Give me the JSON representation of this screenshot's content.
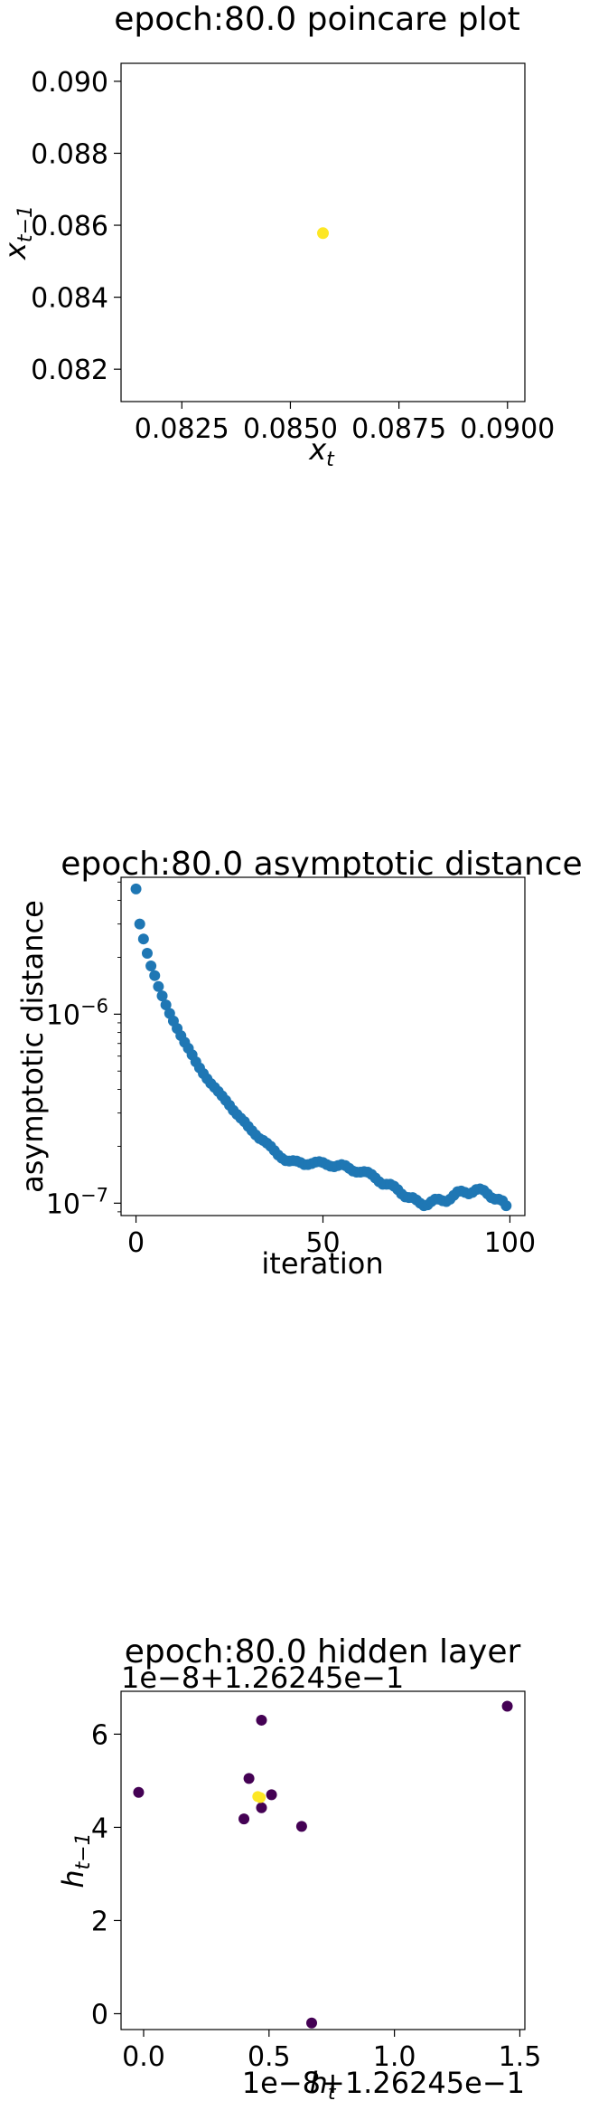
{
  "chart_data": [
    {
      "type": "scatter",
      "title": "epoch:80.0 poincare plot",
      "xlabel": "x",
      "xlabel_sub": "t",
      "ylabel": "x",
      "ylabel_sub": "t−1",
      "xlim": [
        0.0811,
        0.0904
      ],
      "ylim": [
        0.0811,
        0.0905
      ],
      "xticks": [
        0.0825,
        0.085,
        0.0875,
        0.09
      ],
      "xtick_labels": [
        "0.0825",
        "0.0850",
        "0.0875",
        "0.0900"
      ],
      "yticks": [
        0.082,
        0.084,
        0.086,
        0.088,
        0.09
      ],
      "ytick_labels": [
        "0.082",
        "0.084",
        "0.086",
        "0.088",
        "0.090"
      ],
      "point_color": "#fde725",
      "points": [
        {
          "x": 0.08575,
          "y": 0.08578
        }
      ]
    },
    {
      "type": "scatter",
      "scale": "log",
      "title": "epoch:80.0 asymptotic distance",
      "xlabel": "iteration",
      "ylabel": "asymptotic distance",
      "xlim": [
        -4,
        104
      ],
      "ylim": [
        8.6e-08,
        5.3e-06
      ],
      "xticks": [
        0,
        50,
        100
      ],
      "xtick_labels": [
        "0",
        "50",
        "100"
      ],
      "ytick_base": "10",
      "yticks": [
        1e-07,
        1e-06
      ],
      "ytick_exponents": [
        "−7",
        "−6"
      ],
      "point_color": "#1f77b4",
      "x": [
        0,
        1,
        2,
        3,
        4,
        5,
        6,
        7,
        8,
        9,
        10,
        11,
        12,
        13,
        14,
        15,
        16,
        17,
        18,
        19,
        20,
        21,
        22,
        23,
        24,
        25,
        26,
        27,
        28,
        29,
        30,
        31,
        32,
        33,
        34,
        35,
        36,
        37,
        38,
        39,
        40,
        41,
        42,
        43,
        44,
        45,
        46,
        47,
        48,
        49,
        50,
        51,
        52,
        53,
        54,
        55,
        56,
        57,
        58,
        59,
        60,
        61,
        62,
        63,
        64,
        65,
        66,
        67,
        68,
        69,
        70,
        71,
        72,
        73,
        74,
        75,
        76,
        77,
        78,
        79,
        80,
        81,
        82,
        83,
        84,
        85,
        86,
        87,
        88,
        89,
        90,
        91,
        92,
        93,
        94,
        95,
        96,
        97,
        98,
        99
      ],
      "y": [
        4.6e-06,
        3e-06,
        2.5e-06,
        2.1e-06,
        1.8e-06,
        1.6e-06,
        1.4e-06,
        1.25e-06,
        1.12e-06,
        1.01e-06,
        9.2e-07,
        8.4e-07,
        7.7e-07,
        7.1e-07,
        6.6e-07,
        6.1e-07,
        5.6e-07,
        5.2e-07,
        4.85e-07,
        4.55e-07,
        4.3e-07,
        4.1e-07,
        3.9e-07,
        3.7e-07,
        3.5e-07,
        3.3e-07,
        3.1e-07,
        2.95e-07,
        2.82e-07,
        2.7e-07,
        2.55e-07,
        2.42e-07,
        2.3e-07,
        2.2e-07,
        2.15e-07,
        2.08e-07,
        2e-07,
        1.9e-07,
        1.8e-07,
        1.73e-07,
        1.68e-07,
        1.67e-07,
        1.68e-07,
        1.67e-07,
        1.64e-07,
        1.6e-07,
        1.6e-07,
        1.62e-07,
        1.65e-07,
        1.66e-07,
        1.64e-07,
        1.6e-07,
        1.57e-07,
        1.56e-07,
        1.58e-07,
        1.6e-07,
        1.58e-07,
        1.53e-07,
        1.48e-07,
        1.46e-07,
        1.46e-07,
        1.47e-07,
        1.46e-07,
        1.42e-07,
        1.36e-07,
        1.3e-07,
        1.26e-07,
        1.26e-07,
        1.26e-07,
        1.23e-07,
        1.18e-07,
        1.12e-07,
        1.08e-07,
        1.07e-07,
        1.07e-07,
        1.04e-07,
        1e-07,
        9.7e-08,
        9.8e-08,
        1.02e-07,
        1.05e-07,
        1.05e-07,
        1.03e-07,
        1.02e-07,
        1.05e-07,
        1.1e-07,
        1.15e-07,
        1.16e-07,
        1.14e-07,
        1.12e-07,
        1.14e-07,
        1.18e-07,
        1.19e-07,
        1.17e-07,
        1.12e-07,
        1.07e-07,
        1.05e-07,
        1.05e-07,
        1.03e-07,
        9.7e-08
      ]
    },
    {
      "type": "scatter",
      "title": "epoch:80.0 hidden layer",
      "xlabel": "h",
      "xlabel_sub": "t",
      "ylabel": "h",
      "ylabel_sub": "t−1",
      "offset_text_y": "1e−8+1.26245e−1",
      "offset_text_x": "1e−8+1.26245e−1",
      "xlim": [
        -0.09,
        1.52
      ],
      "ylim": [
        -0.34,
        6.92
      ],
      "xticks": [
        0.0,
        0.5,
        1.0,
        1.5
      ],
      "xtick_labels": [
        "0.0",
        "0.5",
        "1.0",
        "1.5"
      ],
      "yticks": [
        0,
        2,
        4,
        6
      ],
      "ytick_labels": [
        "0",
        "2",
        "4",
        "6"
      ],
      "colors": {
        "purple": "#440154",
        "yellow": "#fde725"
      },
      "points": [
        {
          "x": -0.02,
          "y": 4.75,
          "c": "purple"
        },
        {
          "x": 0.4,
          "y": 4.18,
          "c": "purple"
        },
        {
          "x": 0.42,
          "y": 5.05,
          "c": "purple"
        },
        {
          "x": 0.47,
          "y": 6.3,
          "c": "purple"
        },
        {
          "x": 0.47,
          "y": 4.42,
          "c": "purple"
        },
        {
          "x": 0.51,
          "y": 4.7,
          "c": "purple"
        },
        {
          "x": 0.63,
          "y": 4.02,
          "c": "purple"
        },
        {
          "x": 0.67,
          "y": -0.2,
          "c": "purple"
        },
        {
          "x": 1.45,
          "y": 6.6,
          "c": "purple"
        },
        {
          "x": 0.455,
          "y": 4.66,
          "c": "yellow"
        },
        {
          "x": 0.465,
          "y": 4.64,
          "c": "yellow"
        }
      ]
    }
  ]
}
